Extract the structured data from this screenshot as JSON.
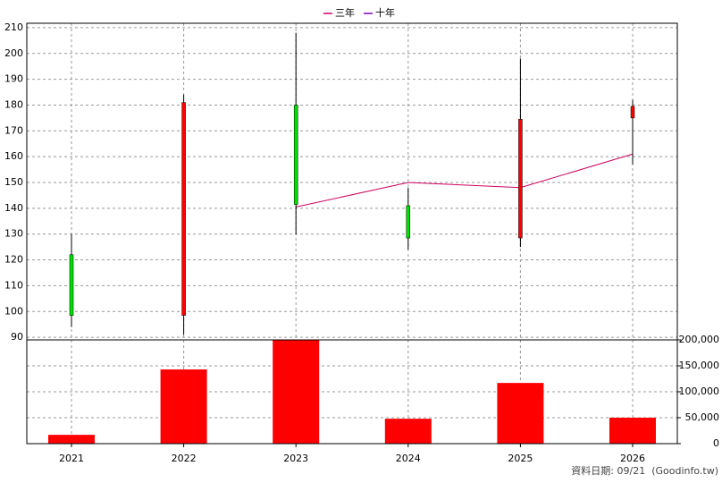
{
  "chart_data": {
    "type": "candlestick",
    "categories": [
      "2021",
      "2022",
      "2023",
      "2024",
      "2025",
      "2026"
    ],
    "open": [
      122,
      98.5,
      180,
      141,
      128.5,
      175
    ],
    "high": [
      130,
      184,
      208,
      148,
      198,
      182
    ],
    "low": [
      94,
      91,
      130,
      124,
      125,
      157
    ],
    "close": [
      98.5,
      181,
      141.5,
      128.5,
      174.5,
      179.5
    ],
    "up_color": "#ff0000",
    "down_color": "#00e000",
    "series": [
      {
        "name": "三年",
        "color": "#d00060",
        "values": [
          null,
          null,
          140.5,
          150,
          148,
          161
        ]
      },
      {
        "name": "十年",
        "color": "#8000c0",
        "values": [
          null,
          null,
          null,
          null,
          null,
          null
        ]
      }
    ],
    "ylim": [
      89,
      211.7
    ],
    "yticks": [
      90,
      100,
      110,
      120,
      130,
      140,
      150,
      160,
      170,
      180,
      190,
      200,
      210
    ],
    "volume": {
      "color": "#ff0000",
      "values": [
        17000,
        143000,
        200000,
        48000,
        117000,
        50000
      ],
      "y2lim": [
        0,
        200000
      ],
      "y2ticks": [
        0,
        {
          "value": 50000,
          "label": "50,000"
        },
        {
          "value": 100000,
          "label": "100,000"
        },
        {
          "value": 150000,
          "label": "150,000"
        },
        {
          "value": 200000,
          "label": "200,000"
        }
      ]
    },
    "grid": true,
    "footnote": "資料日期: 09/21  (Goodinfo.tw)"
  }
}
